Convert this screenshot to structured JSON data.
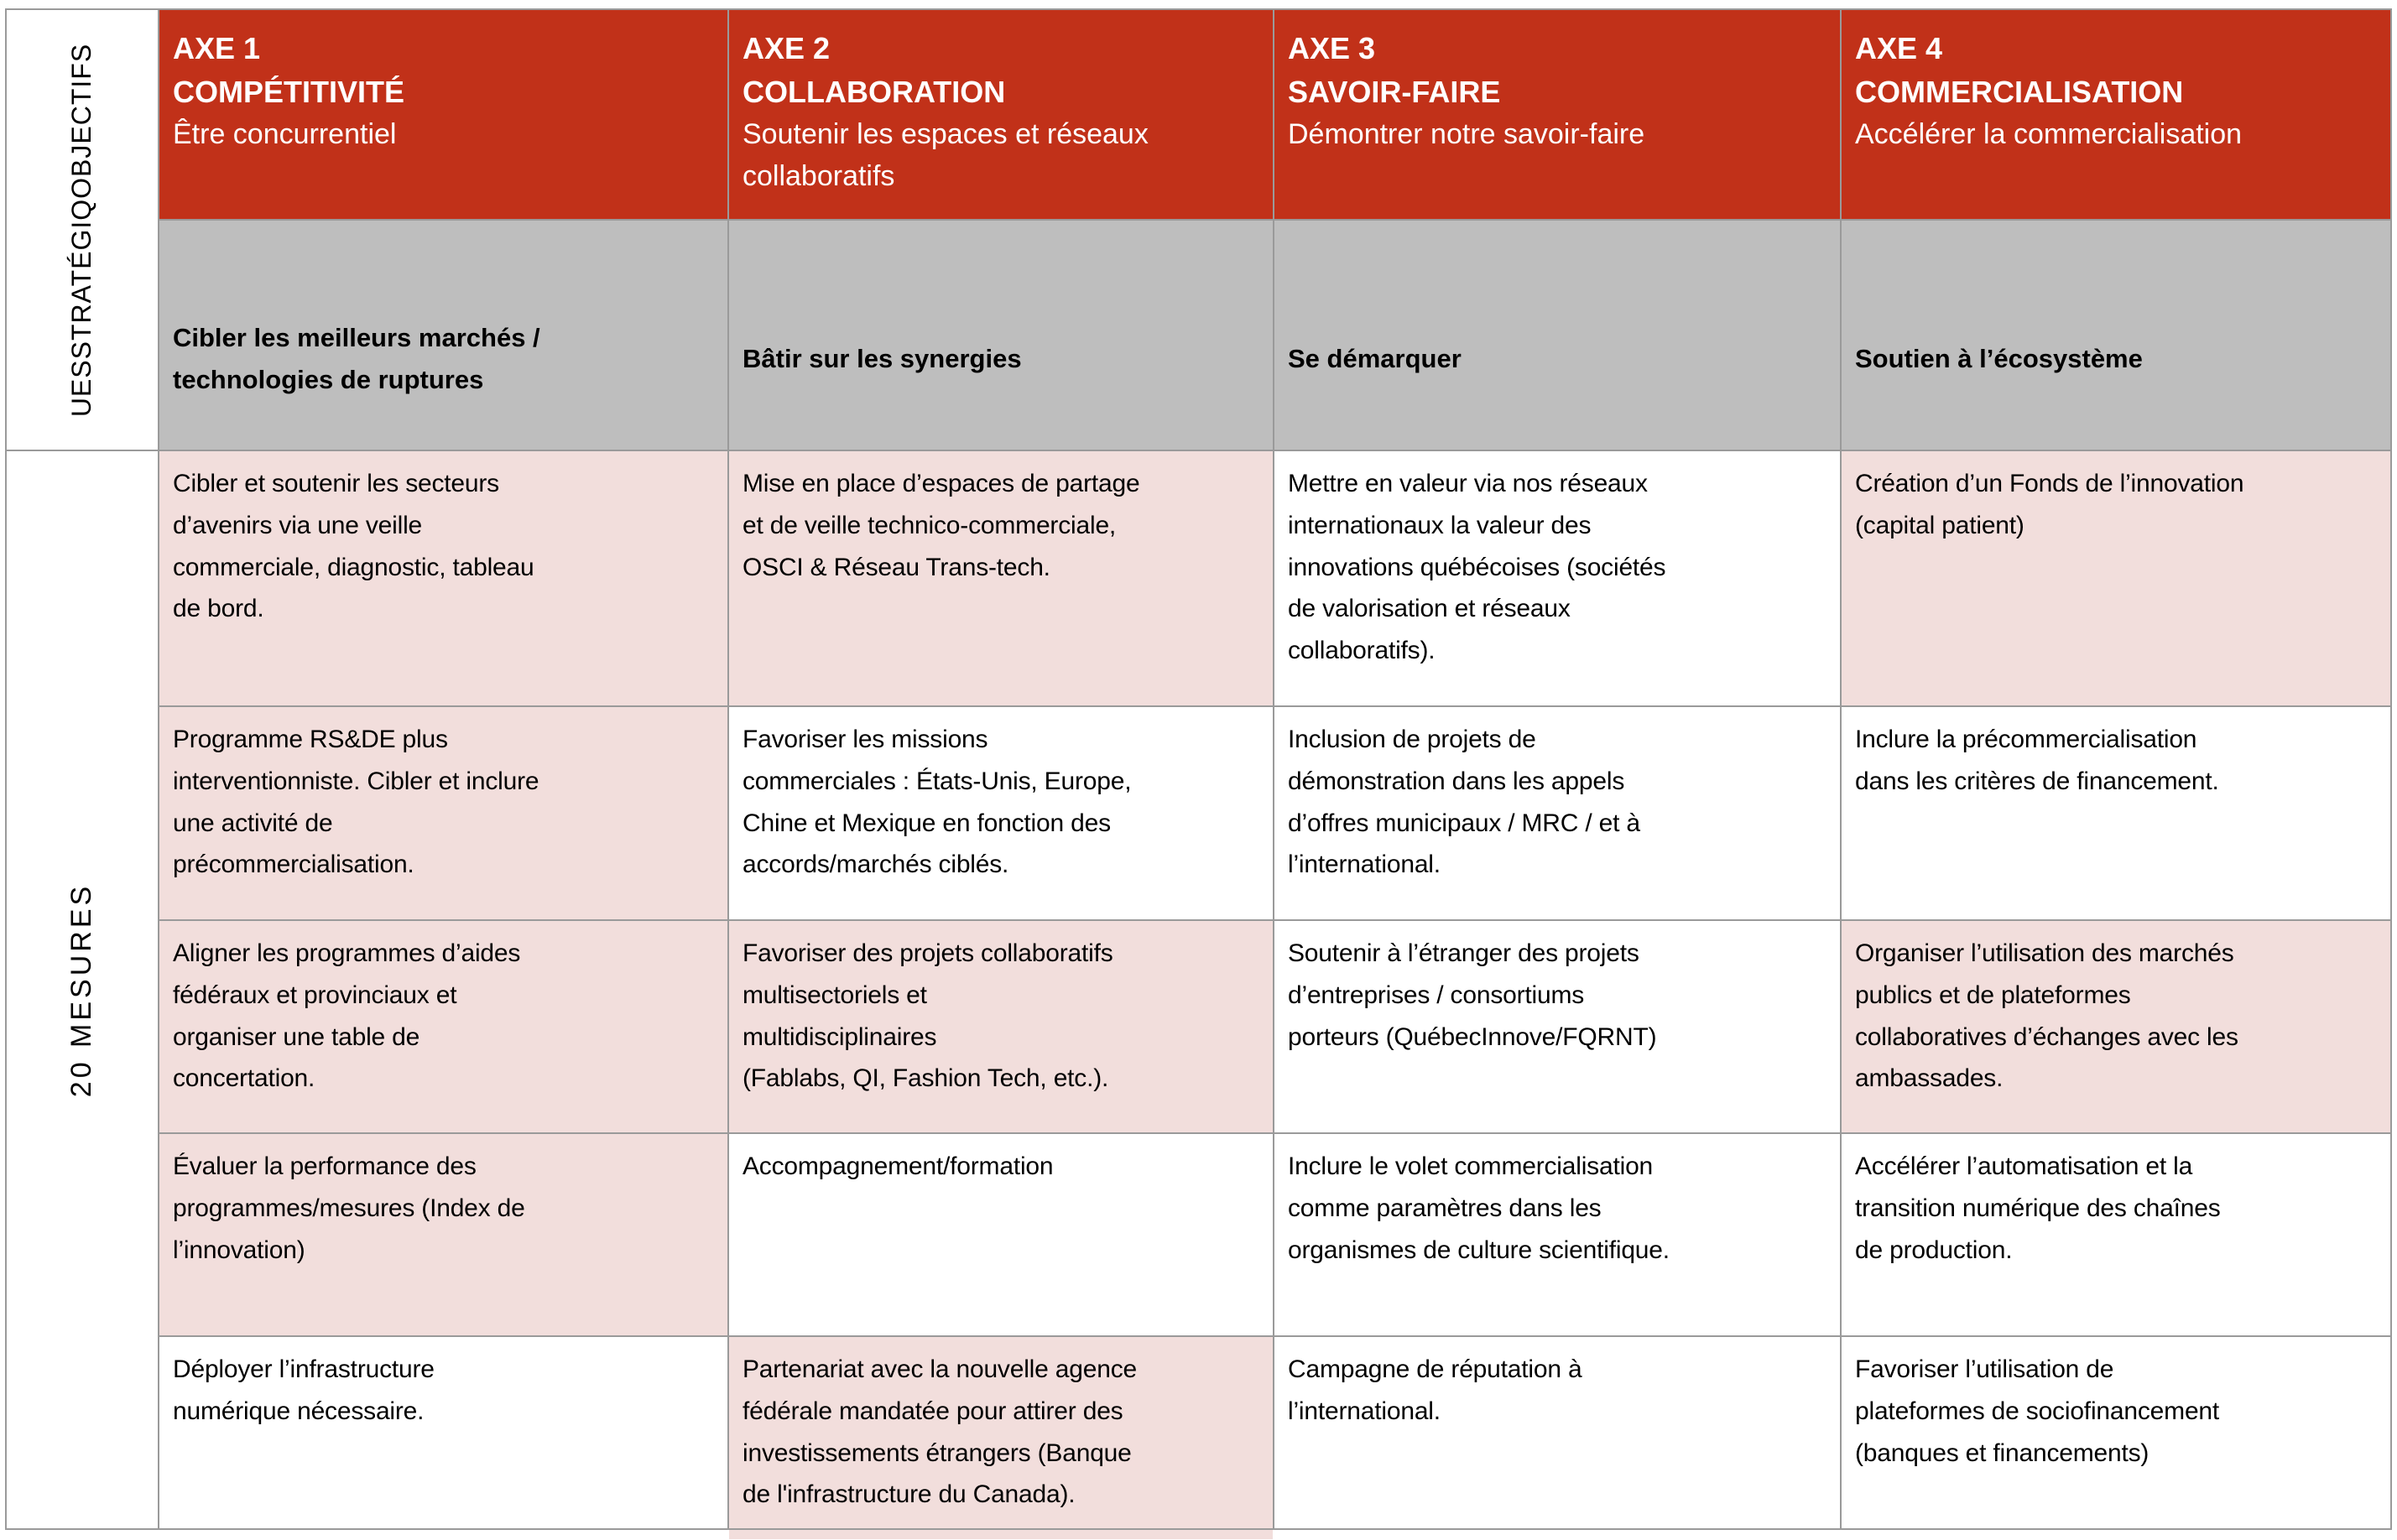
{
  "colors": {
    "red": "#C13119",
    "gray": "#BEBEBE",
    "pink": "#F2DEDC",
    "border": "#9A9A9A",
    "text": "#000000",
    "header_text": "#FFFFFF"
  },
  "rail": {
    "objectives": "UESSTRATÉGIQOBJECTIFS",
    "measures": "20 MESURES"
  },
  "columns": [
    {
      "axe": "AXE 1",
      "title": "COMPÉTITIVITÉ",
      "subtitle": "Être concurrentiel",
      "objective": "Cibler les meilleurs marchés /\ntechnologies de ruptures",
      "measures": [
        {
          "text": "Cibler et soutenir les secteurs\nd’avenirs via une veille\ncommerciale, diagnostic, tableau\nde bord.",
          "bg": "pink"
        },
        {
          "text": "Programme RS&DE plus\ninterventionniste. Cibler et inclure\nune activité de\nprécommercialisation.",
          "bg": "pink"
        },
        {
          "text": "Aligner les programmes d’aides\nfédéraux et provinciaux et\norganiser une table de\nconcertation.",
          "bg": "pink"
        },
        {
          "text": "Évaluer la performance des\nprogrammes/mesures (Index de\nl’innovation)",
          "bg": "pink"
        },
        {
          "text": "Déployer l’infrastructure\nnumérique nécessaire.",
          "bg": "white"
        }
      ]
    },
    {
      "axe": "AXE 2",
      "title": "COLLABORATION",
      "subtitle": "Soutenir les espaces et réseaux\ncollaboratifs",
      "objective": "Bâtir sur les synergies",
      "measures": [
        {
          "text": "Mise en place d’espaces de partage\net de veille technico-commerciale,\nOSCI & Réseau Trans-tech.",
          "bg": "pink"
        },
        {
          "text": "Favoriser les missions\ncommerciales : États-Unis, Europe,\nChine et Mexique en fonction des\naccords/marchés ciblés.",
          "bg": "white"
        },
        {
          "text": "Favoriser des projets collaboratifs\nmultisectoriels et\nmultidisciplinaires\n(Fablabs, QI, Fashion Tech, etc.).",
          "bg": "pink"
        },
        {
          "text": "Accompagnement/formation",
          "bg": "white"
        },
        {
          "text": "Partenariat avec la nouvelle agence\nfédérale mandatée pour attirer des\ninvestissements étrangers (Banque\nde l'infrastructure du Canada).",
          "bg": "pink"
        }
      ]
    },
    {
      "axe": "AXE 3",
      "title": "SAVOIR-FAIRE",
      "subtitle": "Démontrer notre savoir-faire",
      "objective": "Se démarquer",
      "measures": [
        {
          "text": "Mettre en valeur via nos réseaux\ninternationaux la valeur des\ninnovations québécoises (sociétés\nde valorisation et réseaux\ncollaboratifs).",
          "bg": "white"
        },
        {
          "text": "Inclusion de projets de\ndémonstration dans les appels\nd’offres municipaux / MRC / et à\nl’international.",
          "bg": "white"
        },
        {
          "text": "Soutenir à l’étranger des projets\nd’entreprises / consortiums\nporteurs (QuébecInnove/FQRNT)",
          "bg": "white"
        },
        {
          "text": "Inclure le volet commercialisation\ncomme paramètres dans les\norganismes de culture scientifique.",
          "bg": "white"
        },
        {
          "text": "Campagne de réputation à\nl’international.",
          "bg": "white"
        }
      ]
    },
    {
      "axe": "AXE 4",
      "title": "COMMERCIALISATION",
      "subtitle": "Accélérer la commercialisation",
      "objective": "Soutien à l’écosystème",
      "measures": [
        {
          "text": "Création d’un Fonds de l’innovation\n(capital patient)",
          "bg": "pink"
        },
        {
          "text": "Inclure la précommercialisation\ndans les critères de financement.",
          "bg": "white"
        },
        {
          "text": "Organiser l’utilisation des marchés\npublics et de plateformes\ncollaboratives d’échanges avec les\nambassades.",
          "bg": "pink"
        },
        {
          "text": "Accélérer l’automatisation et la\ntransition numérique des chaînes\nde production.",
          "bg": "white"
        },
        {
          "text": "Favoriser l’utilisation de\nplateformes de sociofinancement\n(banques et financements)",
          "bg": "white"
        }
      ]
    }
  ]
}
